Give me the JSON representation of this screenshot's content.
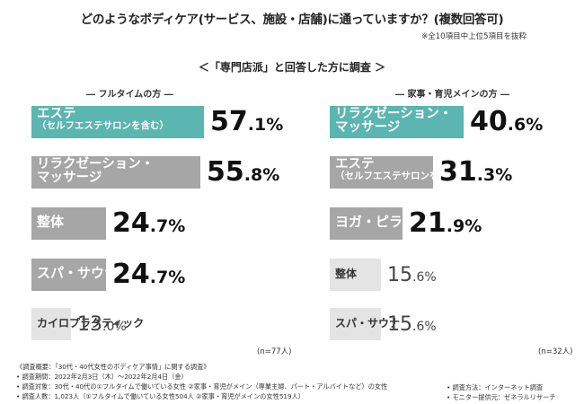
{
  "title": "どのようなボディケア(サービス、施設・店舗)に通っていますか？(複数回答可)",
  "note": "※全10項目中上位5項目を抜粋",
  "subtitle": "＜「専門店派」と回答した方に調査 ＞",
  "colors": {
    "highlight": "#5bb5b0",
    "mid": "#a6a6a6",
    "light": "#e4e4e4"
  },
  "chart_data": [
    {
      "type": "bar",
      "orientation": "horizontal",
      "title": "― フルタイムの方 ―",
      "n": "(n=77人)",
      "unit": "%",
      "categories": [
        "エステ（セルフエステサロンを含む）",
        "リラクゼーション・マッサージ",
        "整体",
        "スパ・サウナ",
        "カイロプラクティック"
      ],
      "label_lines": [
        [
          "エステ",
          "（セルフエステサロンを含む）"
        ],
        [
          "リラクゼーション・",
          "マッサージ"
        ],
        [
          "整体"
        ],
        [
          "スパ・サウナ"
        ],
        [
          "カイロプラクティック"
        ]
      ],
      "values": [
        57.1,
        55.8,
        24.7,
        24.7,
        13.0
      ],
      "value_labels": [
        [
          "57",
          ".1%"
        ],
        [
          "55",
          ".8%"
        ],
        [
          "24",
          ".7%"
        ],
        [
          "24",
          ".7%"
        ],
        [
          "13",
          ".0%"
        ]
      ]
    },
    {
      "type": "bar",
      "orientation": "horizontal",
      "title": "― 家事・育児メインの方 ―",
      "n": "(n=32人)",
      "unit": "%",
      "categories": [
        "リラクゼーション・マッサージ",
        "エステ（セルフエステサロンを含む）",
        "ヨガ・ピラティス",
        "整体",
        "スパ・サウナ"
      ],
      "label_lines": [
        [
          "リラクゼーション・",
          "マッサージ"
        ],
        [
          "エステ",
          "（セルフエステサロンを含む）"
        ],
        [
          "ヨガ・ピラティス"
        ],
        [
          "整体"
        ],
        [
          "スパ・サウナ"
        ]
      ],
      "values": [
        40.6,
        31.3,
        21.9,
        15.6,
        15.6
      ],
      "value_labels": [
        [
          "40",
          ".6%"
        ],
        [
          "31",
          ".3%"
        ],
        [
          "21",
          ".9%"
        ],
        [
          "15",
          ".6%"
        ],
        [
          "15",
          ".6%"
        ]
      ]
    }
  ],
  "footer": {
    "lines": [
      "《調査概要：「30代・40代女性のボディケア事情」に関する調査》",
      "• 調査期間：2022年2月3日（木）～2022年2月4日（金）",
      "• 調査対象：30代・40代の①フルタイムで働いている女性 ②家事・育児がメイン（専業主婦、パート・アルバイトなど）の女性",
      "• 調査人数：1,023人（①フルタイムで働いている女性504人 ②家事・育児がメインの女性519人）"
    ],
    "right_lines": [
      "• 調査方法：インターネット調査",
      "• モニター提供元：ゼネラルリサーチ"
    ]
  }
}
